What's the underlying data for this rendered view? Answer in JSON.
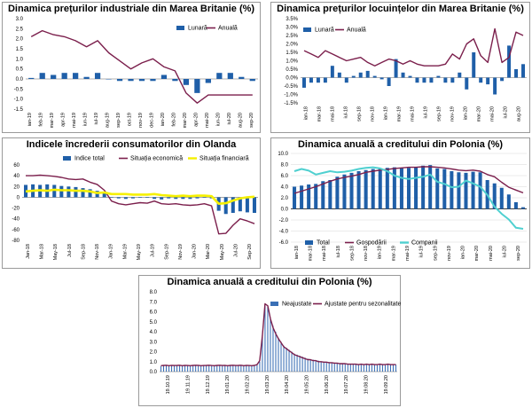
{
  "colors": {
    "bar_blue": "#1f5fa8",
    "line_maroon": "#7b1f4c",
    "yellow": "#f5f000",
    "teal": "#4fd0d0",
    "zero_line": "#000000",
    "grid": "#d8d8d8"
  },
  "chart_data": [
    {
      "id": "uk_industrial",
      "type": "bar+line",
      "title": "Dinamica prețurilor industriale din Marea Britanie (%)",
      "legend": [
        "Lunară",
        "Anuală"
      ],
      "legend_position": "top-right",
      "categories": [
        "ian-19",
        "feb-19",
        "mar-19",
        "apr-19",
        "mai-19",
        "iun-19",
        "iul-19",
        "aug-19",
        "sep-19",
        "oct-19",
        "nov-19",
        "dec-19",
        "ian-20",
        "feb-20",
        "mar-20",
        "apr-20",
        "mai-20",
        "iun-20",
        "iul-20",
        "aug-20",
        "sep-20"
      ],
      "x_tick_labels": [
        "ian-19",
        "feb-19",
        "mar-19",
        "apr-19",
        "mai-19",
        "iun-19",
        "iul-19",
        "aug-19",
        "sep-19",
        "oct-19",
        "nov-19",
        "dec-19",
        "ian-20",
        "feb-20",
        "mar-20",
        "apr-20",
        "mai-20",
        "iun-20",
        "iul-20",
        "aug-20",
        "sep-20"
      ],
      "bar_series": {
        "name": "Lunară",
        "values": [
          0.05,
          0.3,
          0.2,
          0.3,
          0.3,
          0.1,
          0.3,
          0.0,
          -0.1,
          -0.1,
          -0.1,
          -0.1,
          0.2,
          -0.1,
          -0.3,
          -0.7,
          -0.2,
          0.3,
          0.3,
          0.1,
          -0.1
        ]
      },
      "line_series": {
        "name": "Anuală",
        "values": [
          2.1,
          2.4,
          2.2,
          2.1,
          1.9,
          1.6,
          1.9,
          1.3,
          0.9,
          0.5,
          0.8,
          1.0,
          0.6,
          0.4,
          -0.7,
          -1.2,
          -0.8,
          -0.8,
          -0.8,
          -0.8,
          -0.8
        ]
      },
      "ylim": [
        -1.5,
        3.0
      ],
      "y_ticks": [
        "-1.5",
        "-1.0",
        "-0.5",
        "0.0",
        "0.5",
        "1.0",
        "1.5",
        "2.0",
        "2.5",
        "3.0"
      ],
      "y_tick_values": [
        -1.5,
        -1.0,
        -0.5,
        0.0,
        0.5,
        1.0,
        1.5,
        2.0,
        2.5,
        3.0
      ]
    },
    {
      "id": "uk_housing",
      "type": "bar+line",
      "title": "Dinamica prețurilor locuințelor din Marea Britanie (%)",
      "legend": [
        "Lunară",
        "Anuală"
      ],
      "legend_position": "top-left",
      "categories": [
        "ian-18",
        "feb-18",
        "mar-18",
        "apr-18",
        "mai-18",
        "iun-18",
        "iul-18",
        "aug-18",
        "sep-18",
        "oct-18",
        "nov-18",
        "dec-18",
        "ian-19",
        "feb-19",
        "mar-19",
        "apr-19",
        "mai-19",
        "iun-19",
        "iul-19",
        "aug-19",
        "sep-19",
        "oct-19",
        "nov-19",
        "dec-19",
        "ian-20",
        "feb-20",
        "mar-20",
        "apr-20",
        "mai-20",
        "iun-20",
        "iul-20",
        "aug-20"
      ],
      "x_tick_labels": [
        "ian-18",
        "mar-18",
        "mai-18",
        "iul-18",
        "sep-18",
        "nov-18",
        "ian-19",
        "mar-19",
        "mai-19",
        "iul-19",
        "sep-19",
        "nov-19",
        "ian-20",
        "mar-20",
        "mai-20",
        "iul-20",
        "aug-20"
      ],
      "bar_series": {
        "name": "Lunară",
        "values": [
          -0.6,
          -0.3,
          -0.3,
          -0.3,
          0.7,
          0.3,
          -0.3,
          0.1,
          0.3,
          0.4,
          0.1,
          -0.1,
          -0.5,
          1.1,
          0.3,
          0.1,
          -0.3,
          -0.3,
          -0.3,
          0.1,
          -0.3,
          -0.3,
          0.3,
          -0.7,
          1.5,
          -0.3,
          -0.4,
          -1.0,
          -0.2,
          1.9,
          0.5,
          0.8
        ]
      },
      "line_series": {
        "name": "Anuală",
        "values": [
          1.6,
          1.4,
          1.2,
          1.6,
          1.4,
          1.2,
          1.0,
          1.1,
          1.2,
          0.9,
          0.7,
          0.9,
          1.1,
          1.0,
          0.8,
          1.0,
          0.8,
          0.7,
          0.7,
          0.7,
          0.8,
          1.4,
          1.1,
          2.0,
          2.3,
          1.3,
          0.9,
          2.9,
          0.9,
          1.2,
          2.7,
          2.5
        ]
      },
      "ylim": [
        -1.5,
        3.5
      ],
      "y_ticks": [
        "-1.5%",
        "-1.0%",
        "-0.5%",
        "0.0%",
        "0.5%",
        "1.0%",
        "1.5%",
        "2.0%",
        "2.5%",
        "3.0%",
        "3.5%"
      ],
      "y_tick_values": [
        -1.5,
        -1.0,
        -0.5,
        0.0,
        0.5,
        1.0,
        1.5,
        2.0,
        2.5,
        3.0,
        3.5
      ]
    },
    {
      "id": "nl_confidence",
      "type": "bar+line",
      "title": "Indicele încrederii consumatorilor din Olanda",
      "legend": [
        "Indice total",
        "Situația economică",
        "Situația financiară"
      ],
      "legend_position": "top",
      "categories": [
        "Jan-18",
        "Feb-18",
        "Mar-18",
        "Apr-18",
        "May-18",
        "Jun-18",
        "Jul-18",
        "Aug-18",
        "Sep-18",
        "Oct-18",
        "Nov-18",
        "Dec-18",
        "Jan-19",
        "Feb-19",
        "Mar-19",
        "Apr-19",
        "May-19",
        "Jun-19",
        "Jul-19",
        "Aug-19",
        "Sep-19",
        "Oct-19",
        "Nov-19",
        "Dec-19",
        "Jan-20",
        "Feb-20",
        "Mar-20",
        "Apr-20",
        "May-20",
        "Jun-20",
        "Jul-20",
        "Aug-20",
        "Sep-20"
      ],
      "x_tick_labels": [
        "Jan-18",
        "Mar-18",
        "May-18",
        "Jul-18",
        "Sep-18",
        "Nov-18",
        "Jan-19",
        "Mar-19",
        "May-19",
        "Jul-19",
        "Sep-19",
        "Nov-19",
        "Jan-20",
        "Mar-20",
        "May-20",
        "Jul-20",
        "Sep-20"
      ],
      "bar_series": {
        "name": "Indice total",
        "values": [
          23,
          24,
          23,
          24,
          23,
          21,
          20,
          19,
          17,
          15,
          12,
          8,
          0,
          -2,
          -3,
          -2,
          -1,
          -1,
          -3,
          -4,
          -2,
          -3,
          -3,
          -3,
          -2,
          -1,
          -2,
          -25,
          -31,
          -29,
          -26,
          -28,
          -29
        ]
      },
      "line_series": {
        "name": "Situația economică",
        "values": [
          40,
          40,
          41,
          40,
          39,
          37,
          34,
          33,
          34,
          28,
          24,
          13,
          -7,
          -12,
          -14,
          -12,
          -10,
          -11,
          -7,
          -12,
          -13,
          -12,
          -14,
          -15,
          -14,
          -12,
          -16,
          -68,
          -67,
          -52,
          -40,
          -44,
          -49
        ]
      },
      "line_series_2": {
        "name": "Situația financiară",
        "values": [
          11,
          12,
          13,
          12,
          14,
          13,
          13,
          12,
          12,
          11,
          8,
          9,
          6,
          6,
          6,
          5,
          5,
          5,
          6,
          4,
          3,
          2,
          3,
          2,
          3,
          3,
          2,
          -12,
          -11,
          -6,
          -2,
          0,
          1
        ]
      },
      "ylim": [
        -80,
        60
      ],
      "y_ticks": [
        "-80",
        "-60",
        "-40",
        "-20",
        "0",
        "20",
        "40",
        "60"
      ],
      "y_tick_values": [
        -80,
        -60,
        -40,
        -20,
        0,
        20,
        40,
        60
      ]
    },
    {
      "id": "pl_credit_annual",
      "type": "bar+line",
      "title": "Dinamica anuală a creditului din Polonia (%)",
      "legend": [
        "Total",
        "Gospodării",
        "Companii"
      ],
      "legend_position": "bottom",
      "categories": [
        "ian-18",
        "feb-18",
        "mar-18",
        "apr-18",
        "mai-18",
        "iun-18",
        "iul-18",
        "aug-18",
        "sep-18",
        "oct-18",
        "nov-18",
        "dec-18",
        "ian-19",
        "feb-19",
        "mar-19",
        "apr-19",
        "mai-19",
        "iun-19",
        "iul-19",
        "aug-19",
        "sep-19",
        "oct-19",
        "nov-19",
        "dec-19",
        "ian-20",
        "feb-20",
        "mar-20",
        "apr-20",
        "mai-20",
        "iun-20",
        "iul-20",
        "aug-20",
        "sep-20"
      ],
      "x_tick_labels": [
        "ian-18",
        "mar-18",
        "mai-18",
        "iul-18",
        "sep-18",
        "nov-18",
        "ian-19",
        "mar-19",
        "mai-19",
        "iul-19",
        "sep-19",
        "nov-19",
        "ian-20",
        "mar-20",
        "mai-20",
        "iul-20",
        "sep-20"
      ],
      "bar_series": {
        "name": "Total",
        "values": [
          4.0,
          4.2,
          4.4,
          4.5,
          5.0,
          5.2,
          5.8,
          6.2,
          6.5,
          6.8,
          7.0,
          7.2,
          7.3,
          7.4,
          7.5,
          7.4,
          7.4,
          7.6,
          7.8,
          7.9,
          7.3,
          7.2,
          6.8,
          6.6,
          6.5,
          6.7,
          6.6,
          5.2,
          4.6,
          3.8,
          2.6,
          1.2,
          0.3
        ]
      },
      "line_series": {
        "name": "Gospodării",
        "values": [
          2.8,
          3.2,
          3.6,
          4.0,
          4.5,
          5.0,
          5.4,
          5.7,
          5.9,
          6.2,
          6.6,
          6.8,
          7.0,
          7.1,
          7.3,
          7.4,
          7.5,
          7.5,
          7.6,
          7.6,
          7.5,
          7.4,
          7.2,
          7.0,
          6.9,
          7.0,
          6.8,
          6.2,
          5.8,
          4.8,
          3.9,
          3.4,
          2.9
        ]
      },
      "line_series_2": {
        "name": "Companii",
        "values": [
          6.8,
          7.2,
          6.9,
          6.2,
          6.5,
          6.8,
          6.6,
          6.7,
          6.9,
          7.2,
          7.4,
          7.5,
          7.3,
          6.8,
          6.0,
          5.6,
          5.4,
          5.6,
          5.8,
          6.2,
          4.9,
          4.5,
          3.9,
          4.0,
          5.1,
          4.6,
          4.0,
          2.5,
          0.4,
          -0.9,
          -1.9,
          -3.4,
          -3.6
        ]
      },
      "ylim": [
        -6.0,
        10.0
      ],
      "y_ticks": [
        "-6.0",
        "-4.0",
        "-2.0",
        "0.0",
        "2.0",
        "4.0",
        "6.0",
        "8.0",
        "10.0"
      ],
      "y_tick_values": [
        -6.0,
        -4.0,
        -2.0,
        0.0,
        2.0,
        4.0,
        6.0,
        8.0,
        10.0
      ]
    },
    {
      "id": "pl_credit_weekly",
      "type": "bar+line",
      "title": "Dinamica anuală a creditului din Polonia (%)",
      "legend": [
        "Neajustate",
        "Ajustate pentru sezonalitate"
      ],
      "legend_position": "top-right",
      "x_tick_labels": [
        "19.10.19",
        "19.11.19",
        "19.12.19",
        "19.01.20",
        "19.02.20",
        "19.03.20",
        "19.04.20",
        "19.05.20",
        "19.06.20",
        "19.07.20",
        "19.08.20",
        "19.09.20"
      ],
      "bar_series": {
        "name": "Neajustate",
        "values": [
          0.55,
          0.6,
          0.62,
          0.55,
          0.6,
          0.58,
          0.6,
          0.62,
          0.55,
          0.6,
          0.58,
          0.55,
          0.6,
          0.62,
          0.6,
          0.55,
          0.58,
          0.6,
          0.62,
          0.58,
          0.55,
          0.6,
          0.62,
          0.58,
          0.6,
          0.55,
          0.6,
          0.62,
          0.58,
          0.6,
          0.62,
          0.55,
          0.6,
          0.58,
          0.55,
          0.6,
          0.65,
          1.0,
          3.5,
          6.7,
          6.5,
          5.4,
          4.6,
          4.0,
          3.4,
          3.0,
          2.6,
          2.4,
          2.2,
          2.0,
          1.8,
          1.7,
          1.6,
          1.5,
          1.4,
          1.3,
          1.2,
          1.2,
          1.1,
          1.1,
          1.0,
          1.0,
          0.95,
          0.95,
          0.9,
          0.9,
          0.85,
          0.85,
          0.8,
          0.8,
          0.8,
          0.75,
          0.75,
          0.75,
          0.7,
          0.7,
          0.7,
          0.7,
          0.7,
          0.7,
          0.7,
          0.65,
          0.7,
          0.7,
          0.65,
          0.7,
          0.7,
          0.7,
          0.7
        ]
      },
      "line_series": {
        "name": "Ajustate pentru sezonalitate",
        "values": [
          0.6,
          0.62,
          0.64,
          0.6,
          0.63,
          0.61,
          0.62,
          0.64,
          0.6,
          0.62,
          0.61,
          0.6,
          0.62,
          0.64,
          0.63,
          0.6,
          0.61,
          0.62,
          0.64,
          0.61,
          0.6,
          0.62,
          0.64,
          0.61,
          0.62,
          0.6,
          0.62,
          0.64,
          0.61,
          0.62,
          0.64,
          0.6,
          0.62,
          0.61,
          0.6,
          0.62,
          0.7,
          1.1,
          3.6,
          6.8,
          6.6,
          5.3,
          4.4,
          3.8,
          3.3,
          2.9,
          2.5,
          2.3,
          2.1,
          1.9,
          1.7,
          1.6,
          1.5,
          1.4,
          1.3,
          1.2,
          1.2,
          1.1,
          1.1,
          1.0,
          1.0,
          0.95,
          0.95,
          0.9,
          0.9,
          0.85,
          0.85,
          0.8,
          0.8,
          0.8,
          0.75,
          0.75,
          0.75,
          0.75,
          0.7,
          0.75,
          0.7,
          0.75,
          0.7,
          0.75,
          0.7,
          0.7,
          0.75,
          0.7,
          0.7,
          0.75,
          0.7,
          0.7,
          0.7
        ]
      },
      "ylim": [
        0.0,
        8.0
      ],
      "y_ticks": [
        "0.0",
        "1.0",
        "2.0",
        "3.0",
        "4.0",
        "5.0",
        "6.0",
        "7.0",
        "8.0"
      ],
      "y_tick_values": [
        0,
        1,
        2,
        3,
        4,
        5,
        6,
        7,
        8
      ]
    }
  ]
}
